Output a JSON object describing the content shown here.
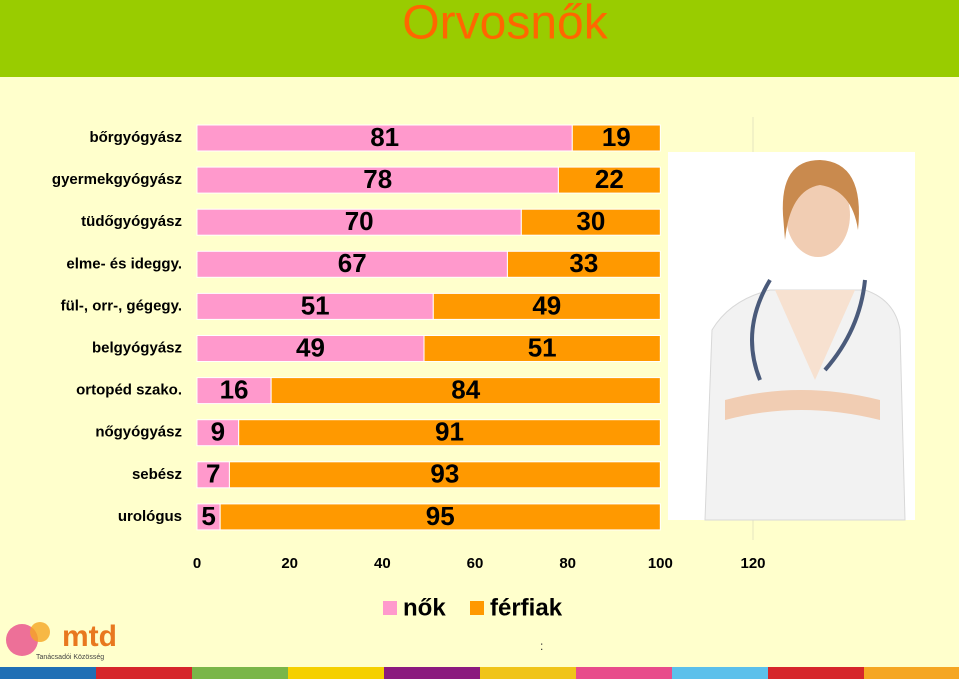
{
  "chart_data": {
    "type": "stacked-barh",
    "title": "Orvosnők",
    "categories": [
      "bőrgyógyász",
      "gyermekgyógyász",
      "tüdőgyógyász",
      "elme- és ideggy.",
      "fül-, orr-, gégegy.",
      "belgyógyász",
      "ortopéd szako.",
      "nőgyógyász",
      "sebész",
      "urológus"
    ],
    "series": [
      {
        "name": "nők",
        "color": "#ff99cc",
        "values": [
          81,
          78,
          70,
          67,
          51,
          49,
          16,
          9,
          7,
          5
        ]
      },
      {
        "name": "férfiak",
        "color": "#ff9900",
        "values": [
          19,
          22,
          30,
          33,
          49,
          51,
          84,
          91,
          93,
          95
        ]
      }
    ],
    "xlim": [
      0,
      120
    ],
    "xticks": [
      0,
      20,
      40,
      60,
      80,
      100,
      120
    ],
    "grid": false,
    "legend": "bottom"
  },
  "logo": {
    "name": "mtd",
    "subtitle": "Tanácsadói Közösség"
  },
  "footnote": ":"
}
